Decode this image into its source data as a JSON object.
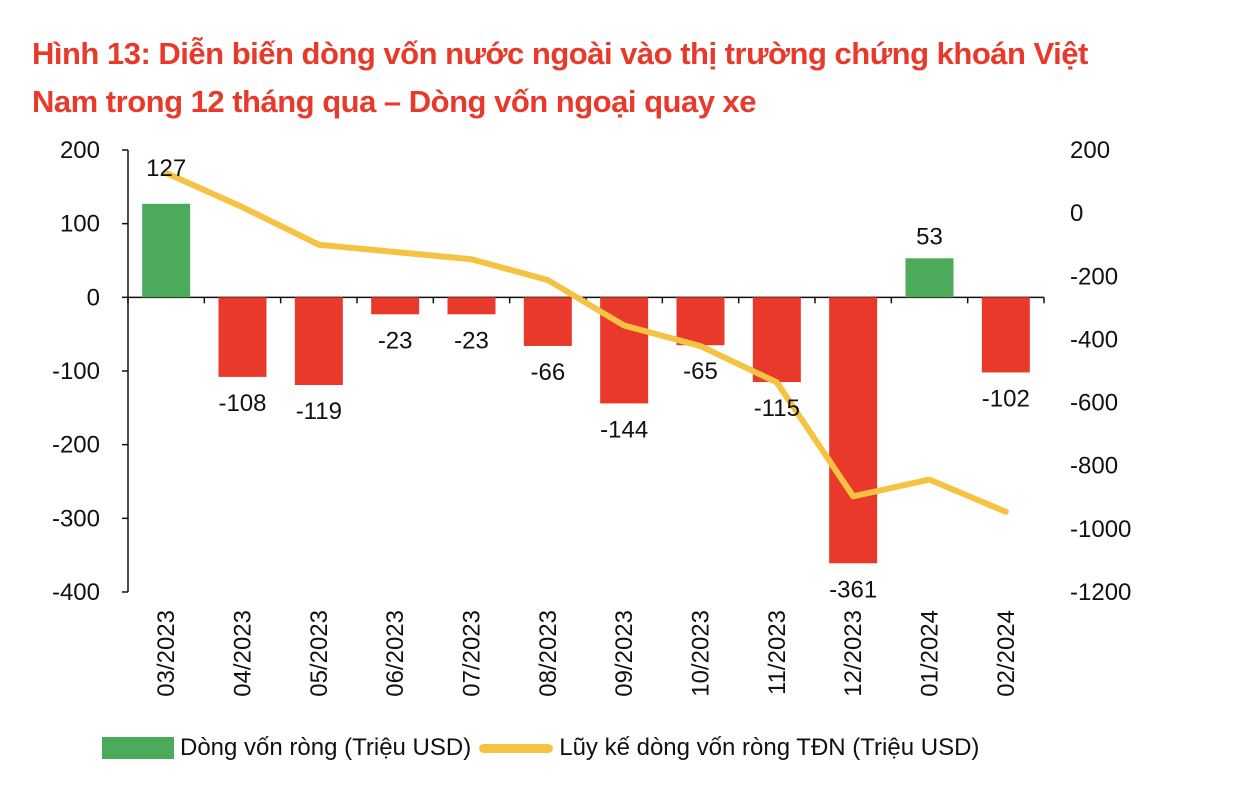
{
  "chart_data": {
    "type": "bar+line",
    "title": "Hình 13: Diễn biến dòng vốn nước ngoài vào thị trường chứng khoán Việt Nam trong 12 tháng qua – Dòng vốn ngoại quay xe",
    "categories": [
      "03/2023",
      "04/2023",
      "05/2023",
      "06/2023",
      "07/2023",
      "08/2023",
      "09/2023",
      "10/2023",
      "11/2023",
      "12/2023",
      "01/2024",
      "02/2024"
    ],
    "series": [
      {
        "name": "Dòng vốn ròng (Triệu USD)",
        "type": "bar",
        "axis": "left",
        "values": [
          127,
          -108,
          -119,
          -23,
          -23,
          -66,
          -144,
          -65,
          -115,
          -361,
          53,
          -102
        ],
        "color_positive": "#4cab5b",
        "color_negative": "#e8392a"
      },
      {
        "name": "Lũy kế dòng vốn ròng TĐN (Triệu USD)",
        "type": "line",
        "axis": "right",
        "values": [
          127,
          19,
          -100,
          -123,
          -146,
          -212,
          -356,
          -421,
          -536,
          -897,
          -844,
          -946
        ],
        "color": "#f5c242"
      }
    ],
    "left_axis": {
      "ylim": [
        -400,
        200
      ],
      "ticks": [
        200,
        100,
        0,
        -100,
        -200,
        -300,
        -400
      ]
    },
    "right_axis": {
      "ylim": [
        -1200,
        200
      ],
      "ticks": [
        200,
        0,
        -200,
        -400,
        -600,
        -800,
        -1000,
        -1200
      ]
    },
    "data_labels": [
      "127",
      "-108",
      "-119",
      "-23",
      "-23",
      "-66",
      "-144",
      "-65",
      "-115",
      "-361",
      "53",
      "-102"
    ],
    "grid": false,
    "legend": "bottom"
  }
}
